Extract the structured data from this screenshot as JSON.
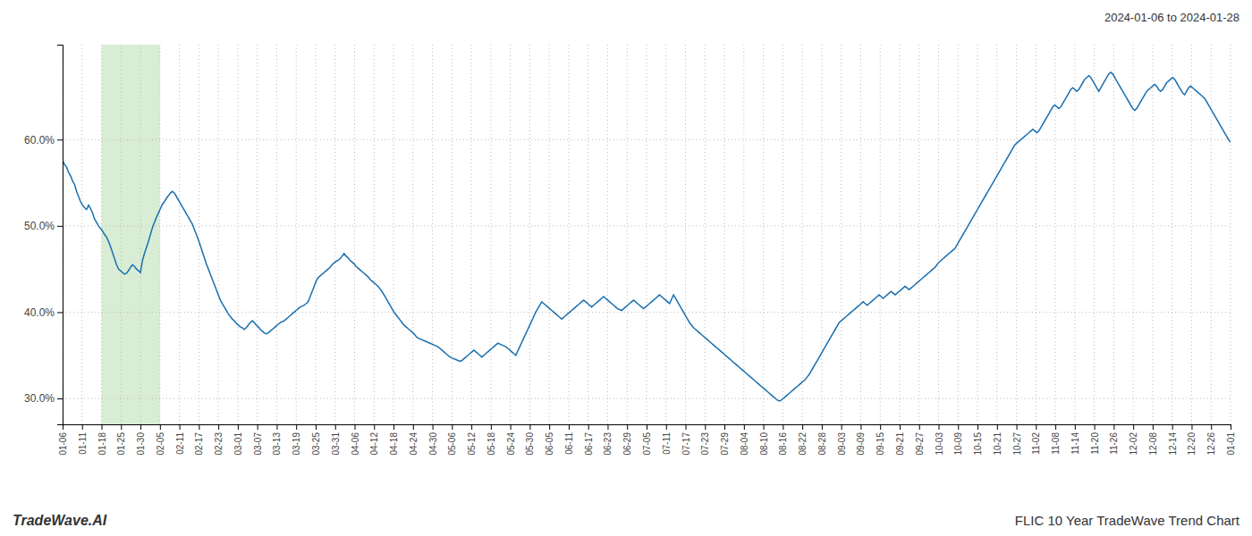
{
  "chart_data": {
    "type": "line",
    "subtitle": "2024-01-06 to 2024-01-28",
    "title": "FLIC 10 Year TradeWave Trend Chart",
    "annotations": [
      "TradeWave.AI"
    ],
    "color": "#1a6faf",
    "grid": true,
    "xlim": [
      0,
      585
    ],
    "xticks": [
      {
        "value": 0,
        "label": "01-06"
      },
      {
        "value": 9.75,
        "label": "01-11"
      },
      {
        "value": 19.5,
        "label": "01-18"
      },
      {
        "value": 29.25,
        "label": "01-25"
      },
      {
        "value": 39,
        "label": "01-30"
      },
      {
        "value": 48.75,
        "label": "02-05"
      },
      {
        "value": 58.5,
        "label": "02-11"
      },
      {
        "value": 68.25,
        "label": "02-17"
      },
      {
        "value": 78,
        "label": "02-23"
      },
      {
        "value": 87.75,
        "label": "03-01"
      },
      {
        "value": 97.5,
        "label": "03-07"
      },
      {
        "value": 107.25,
        "label": "03-13"
      },
      {
        "value": 117,
        "label": "03-19"
      },
      {
        "value": 126.75,
        "label": "03-25"
      },
      {
        "value": 136.5,
        "label": "03-31"
      },
      {
        "value": 146.25,
        "label": "04-06"
      },
      {
        "value": 156,
        "label": "04-12"
      },
      {
        "value": 165.75,
        "label": "04-18"
      },
      {
        "value": 175.5,
        "label": "04-24"
      },
      {
        "value": 185.25,
        "label": "04-30"
      },
      {
        "value": 195,
        "label": "05-06"
      },
      {
        "value": 204.75,
        "label": "05-12"
      },
      {
        "value": 214.5,
        "label": "05-18"
      },
      {
        "value": 224.25,
        "label": "05-24"
      },
      {
        "value": 234,
        "label": "05-30"
      },
      {
        "value": 243.75,
        "label": "06-05"
      },
      {
        "value": 253.5,
        "label": "06-11"
      },
      {
        "value": 263.25,
        "label": "06-17"
      },
      {
        "value": 273,
        "label": "06-23"
      },
      {
        "value": 282.75,
        "label": "06-29"
      },
      {
        "value": 292.5,
        "label": "07-05"
      },
      {
        "value": 302.25,
        "label": "07-11"
      },
      {
        "value": 312,
        "label": "07-17"
      },
      {
        "value": 321.75,
        "label": "07-23"
      },
      {
        "value": 331.5,
        "label": "07-29"
      },
      {
        "value": 341.25,
        "label": "08-04"
      },
      {
        "value": 351,
        "label": "08-10"
      },
      {
        "value": 360.75,
        "label": "08-16"
      },
      {
        "value": 370.5,
        "label": "08-22"
      },
      {
        "value": 380.25,
        "label": "08-28"
      },
      {
        "value": 390,
        "label": "09-03"
      },
      {
        "value": 399.75,
        "label": "09-09"
      },
      {
        "value": 409.5,
        "label": "09-15"
      },
      {
        "value": 419.25,
        "label": "09-21"
      },
      {
        "value": 429,
        "label": "09-27"
      },
      {
        "value": 438.75,
        "label": "10-03"
      },
      {
        "value": 448.5,
        "label": "10-09"
      },
      {
        "value": 458.25,
        "label": "10-15"
      },
      {
        "value": 468,
        "label": "10-21"
      },
      {
        "value": 477.75,
        "label": "10-27"
      },
      {
        "value": 487.5,
        "label": "11-02"
      },
      {
        "value": 497.25,
        "label": "11-08"
      },
      {
        "value": 507,
        "label": "11-14"
      },
      {
        "value": 516.75,
        "label": "11-20"
      },
      {
        "value": 526.5,
        "label": "11-26"
      },
      {
        "value": 536.25,
        "label": "12-02"
      },
      {
        "value": 546,
        "label": "12-08"
      },
      {
        "value": 555.75,
        "label": "12-14"
      },
      {
        "value": 565.5,
        "label": "12-20"
      },
      {
        "value": 575.25,
        "label": "12-26"
      },
      {
        "value": 585,
        "label": "01-01"
      }
    ],
    "ylim": [
      0.27,
      0.71
    ],
    "yticks": [
      {
        "value": 0.3,
        "label": "30.0%"
      },
      {
        "value": 0.4,
        "label": "40.0%"
      },
      {
        "value": 0.5,
        "label": "50.0%"
      },
      {
        "value": 0.6,
        "label": "60.0%"
      }
    ],
    "bands": [
      {
        "x0": 19.5,
        "x1": 48.75,
        "color": "#d8edd4"
      }
    ],
    "values": [
      0.576,
      0.571,
      0.568,
      0.562,
      0.558,
      0.552,
      0.548,
      0.54,
      0.534,
      0.528,
      0.524,
      0.521,
      0.519,
      0.524,
      0.52,
      0.515,
      0.508,
      0.504,
      0.5,
      0.497,
      0.494,
      0.49,
      0.487,
      0.482,
      0.476,
      0.469,
      0.462,
      0.455,
      0.45,
      0.448,
      0.446,
      0.444,
      0.445,
      0.448,
      0.452,
      0.455,
      0.453,
      0.45,
      0.448,
      0.446,
      0.46,
      0.468,
      0.475,
      0.482,
      0.49,
      0.498,
      0.504,
      0.51,
      0.515,
      0.52,
      0.525,
      0.528,
      0.532,
      0.535,
      0.538,
      0.54,
      0.538,
      0.534,
      0.53,
      0.526,
      0.522,
      0.518,
      0.514,
      0.51,
      0.506,
      0.502,
      0.496,
      0.49,
      0.484,
      0.477,
      0.47,
      0.463,
      0.456,
      0.45,
      0.444,
      0.438,
      0.432,
      0.426,
      0.42,
      0.414,
      0.41,
      0.406,
      0.402,
      0.398,
      0.395,
      0.392,
      0.39,
      0.387,
      0.385,
      0.383,
      0.382,
      0.38,
      0.382,
      0.385,
      0.388,
      0.39,
      0.388,
      0.385,
      0.383,
      0.38,
      0.378,
      0.376,
      0.375,
      0.376,
      0.378,
      0.38,
      0.382,
      0.384,
      0.386,
      0.388,
      0.389,
      0.39,
      0.392,
      0.394,
      0.396,
      0.398,
      0.4,
      0.402,
      0.404,
      0.406,
      0.407,
      0.408,
      0.41,
      0.412,
      0.418,
      0.424,
      0.43,
      0.436,
      0.44,
      0.442,
      0.444,
      0.446,
      0.448,
      0.45,
      0.452,
      0.455,
      0.457,
      0.459,
      0.46,
      0.462,
      0.465,
      0.468,
      0.465,
      0.463,
      0.46,
      0.458,
      0.456,
      0.453,
      0.451,
      0.449,
      0.447,
      0.445,
      0.443,
      0.441,
      0.438,
      0.436,
      0.434,
      0.432,
      0.43,
      0.427,
      0.424,
      0.42,
      0.416,
      0.412,
      0.408,
      0.404,
      0.4,
      0.397,
      0.394,
      0.391,
      0.388,
      0.385,
      0.383,
      0.381,
      0.379,
      0.377,
      0.375,
      0.372,
      0.37,
      0.369,
      0.368,
      0.367,
      0.366,
      0.365,
      0.364,
      0.363,
      0.362,
      0.361,
      0.36,
      0.358,
      0.356,
      0.354,
      0.352,
      0.35,
      0.348,
      0.347,
      0.346,
      0.345,
      0.344,
      0.343,
      0.344,
      0.346,
      0.348,
      0.35,
      0.352,
      0.354,
      0.356,
      0.354,
      0.352,
      0.35,
      0.348,
      0.35,
      0.352,
      0.354,
      0.356,
      0.358,
      0.36,
      0.362,
      0.364,
      0.363,
      0.362,
      0.361,
      0.36,
      0.358,
      0.356,
      0.354,
      0.352,
      0.35,
      0.355,
      0.36,
      0.365,
      0.37,
      0.375,
      0.38,
      0.385,
      0.39,
      0.395,
      0.4,
      0.404,
      0.408,
      0.412,
      0.41,
      0.408,
      0.406,
      0.404,
      0.402,
      0.4,
      0.398,
      0.396,
      0.394,
      0.392,
      0.394,
      0.396,
      0.398,
      0.4,
      0.402,
      0.404,
      0.406,
      0.408,
      0.41,
      0.412,
      0.414,
      0.412,
      0.41,
      0.408,
      0.406,
      0.408,
      0.41,
      0.412,
      0.414,
      0.416,
      0.418,
      0.416,
      0.414,
      0.412,
      0.41,
      0.408,
      0.406,
      0.404,
      0.403,
      0.402,
      0.404,
      0.406,
      0.408,
      0.41,
      0.412,
      0.414,
      0.412,
      0.41,
      0.408,
      0.406,
      0.404,
      0.406,
      0.408,
      0.41,
      0.412,
      0.414,
      0.416,
      0.418,
      0.42,
      0.418,
      0.416,
      0.414,
      0.412,
      0.41,
      0.415,
      0.42,
      0.416,
      0.412,
      0.408,
      0.404,
      0.4,
      0.396,
      0.392,
      0.388,
      0.385,
      0.382,
      0.38,
      0.378,
      0.376,
      0.374,
      0.372,
      0.37,
      0.368,
      0.366,
      0.364,
      0.362,
      0.36,
      0.358,
      0.356,
      0.354,
      0.352,
      0.35,
      0.348,
      0.346,
      0.344,
      0.342,
      0.34,
      0.338,
      0.336,
      0.334,
      0.332,
      0.33,
      0.328,
      0.326,
      0.324,
      0.322,
      0.32,
      0.318,
      0.316,
      0.314,
      0.312,
      0.31,
      0.308,
      0.306,
      0.304,
      0.302,
      0.3,
      0.298,
      0.297,
      0.298,
      0.3,
      0.302,
      0.304,
      0.306,
      0.308,
      0.31,
      0.312,
      0.314,
      0.316,
      0.318,
      0.32,
      0.322,
      0.325,
      0.328,
      0.332,
      0.336,
      0.34,
      0.344,
      0.348,
      0.352,
      0.356,
      0.36,
      0.364,
      0.368,
      0.372,
      0.376,
      0.38,
      0.384,
      0.388,
      0.39,
      0.392,
      0.394,
      0.396,
      0.398,
      0.4,
      0.402,
      0.404,
      0.406,
      0.408,
      0.41,
      0.412,
      0.41,
      0.408,
      0.41,
      0.412,
      0.414,
      0.416,
      0.418,
      0.42,
      0.418,
      0.416,
      0.418,
      0.42,
      0.422,
      0.424,
      0.422,
      0.42,
      0.422,
      0.424,
      0.426,
      0.428,
      0.43,
      0.428,
      0.426,
      0.428,
      0.43,
      0.432,
      0.434,
      0.436,
      0.438,
      0.44,
      0.442,
      0.444,
      0.446,
      0.448,
      0.45,
      0.452,
      0.455,
      0.458,
      0.46,
      0.462,
      0.464,
      0.466,
      0.468,
      0.47,
      0.472,
      0.474,
      0.478,
      0.482,
      0.486,
      0.49,
      0.494,
      0.498,
      0.502,
      0.506,
      0.51,
      0.514,
      0.518,
      0.522,
      0.526,
      0.53,
      0.534,
      0.538,
      0.542,
      0.546,
      0.55,
      0.554,
      0.558,
      0.562,
      0.566,
      0.57,
      0.574,
      0.578,
      0.582,
      0.586,
      0.59,
      0.594,
      0.596,
      0.598,
      0.6,
      0.602,
      0.604,
      0.606,
      0.608,
      0.61,
      0.612,
      0.61,
      0.608,
      0.61,
      0.614,
      0.618,
      0.622,
      0.626,
      0.63,
      0.634,
      0.638,
      0.64,
      0.638,
      0.636,
      0.638,
      0.642,
      0.646,
      0.65,
      0.654,
      0.658,
      0.66,
      0.658,
      0.656,
      0.658,
      0.662,
      0.666,
      0.67,
      0.672,
      0.674,
      0.672,
      0.668,
      0.664,
      0.66,
      0.656,
      0.66,
      0.664,
      0.668,
      0.672,
      0.676,
      0.678,
      0.676,
      0.672,
      0.668,
      0.664,
      0.66,
      0.656,
      0.652,
      0.648,
      0.644,
      0.64,
      0.636,
      0.634,
      0.636,
      0.64,
      0.644,
      0.648,
      0.652,
      0.656,
      0.658,
      0.66,
      0.662,
      0.664,
      0.662,
      0.658,
      0.656,
      0.658,
      0.662,
      0.666,
      0.668,
      0.67,
      0.672,
      0.67,
      0.666,
      0.662,
      0.658,
      0.654,
      0.652,
      0.656,
      0.66,
      0.662,
      0.66,
      0.658,
      0.656,
      0.654,
      0.652,
      0.65,
      0.648,
      0.644,
      0.64,
      0.636,
      0.632,
      0.628,
      0.624,
      0.62,
      0.616,
      0.612,
      0.608,
      0.604,
      0.6,
      0.597
    ]
  }
}
